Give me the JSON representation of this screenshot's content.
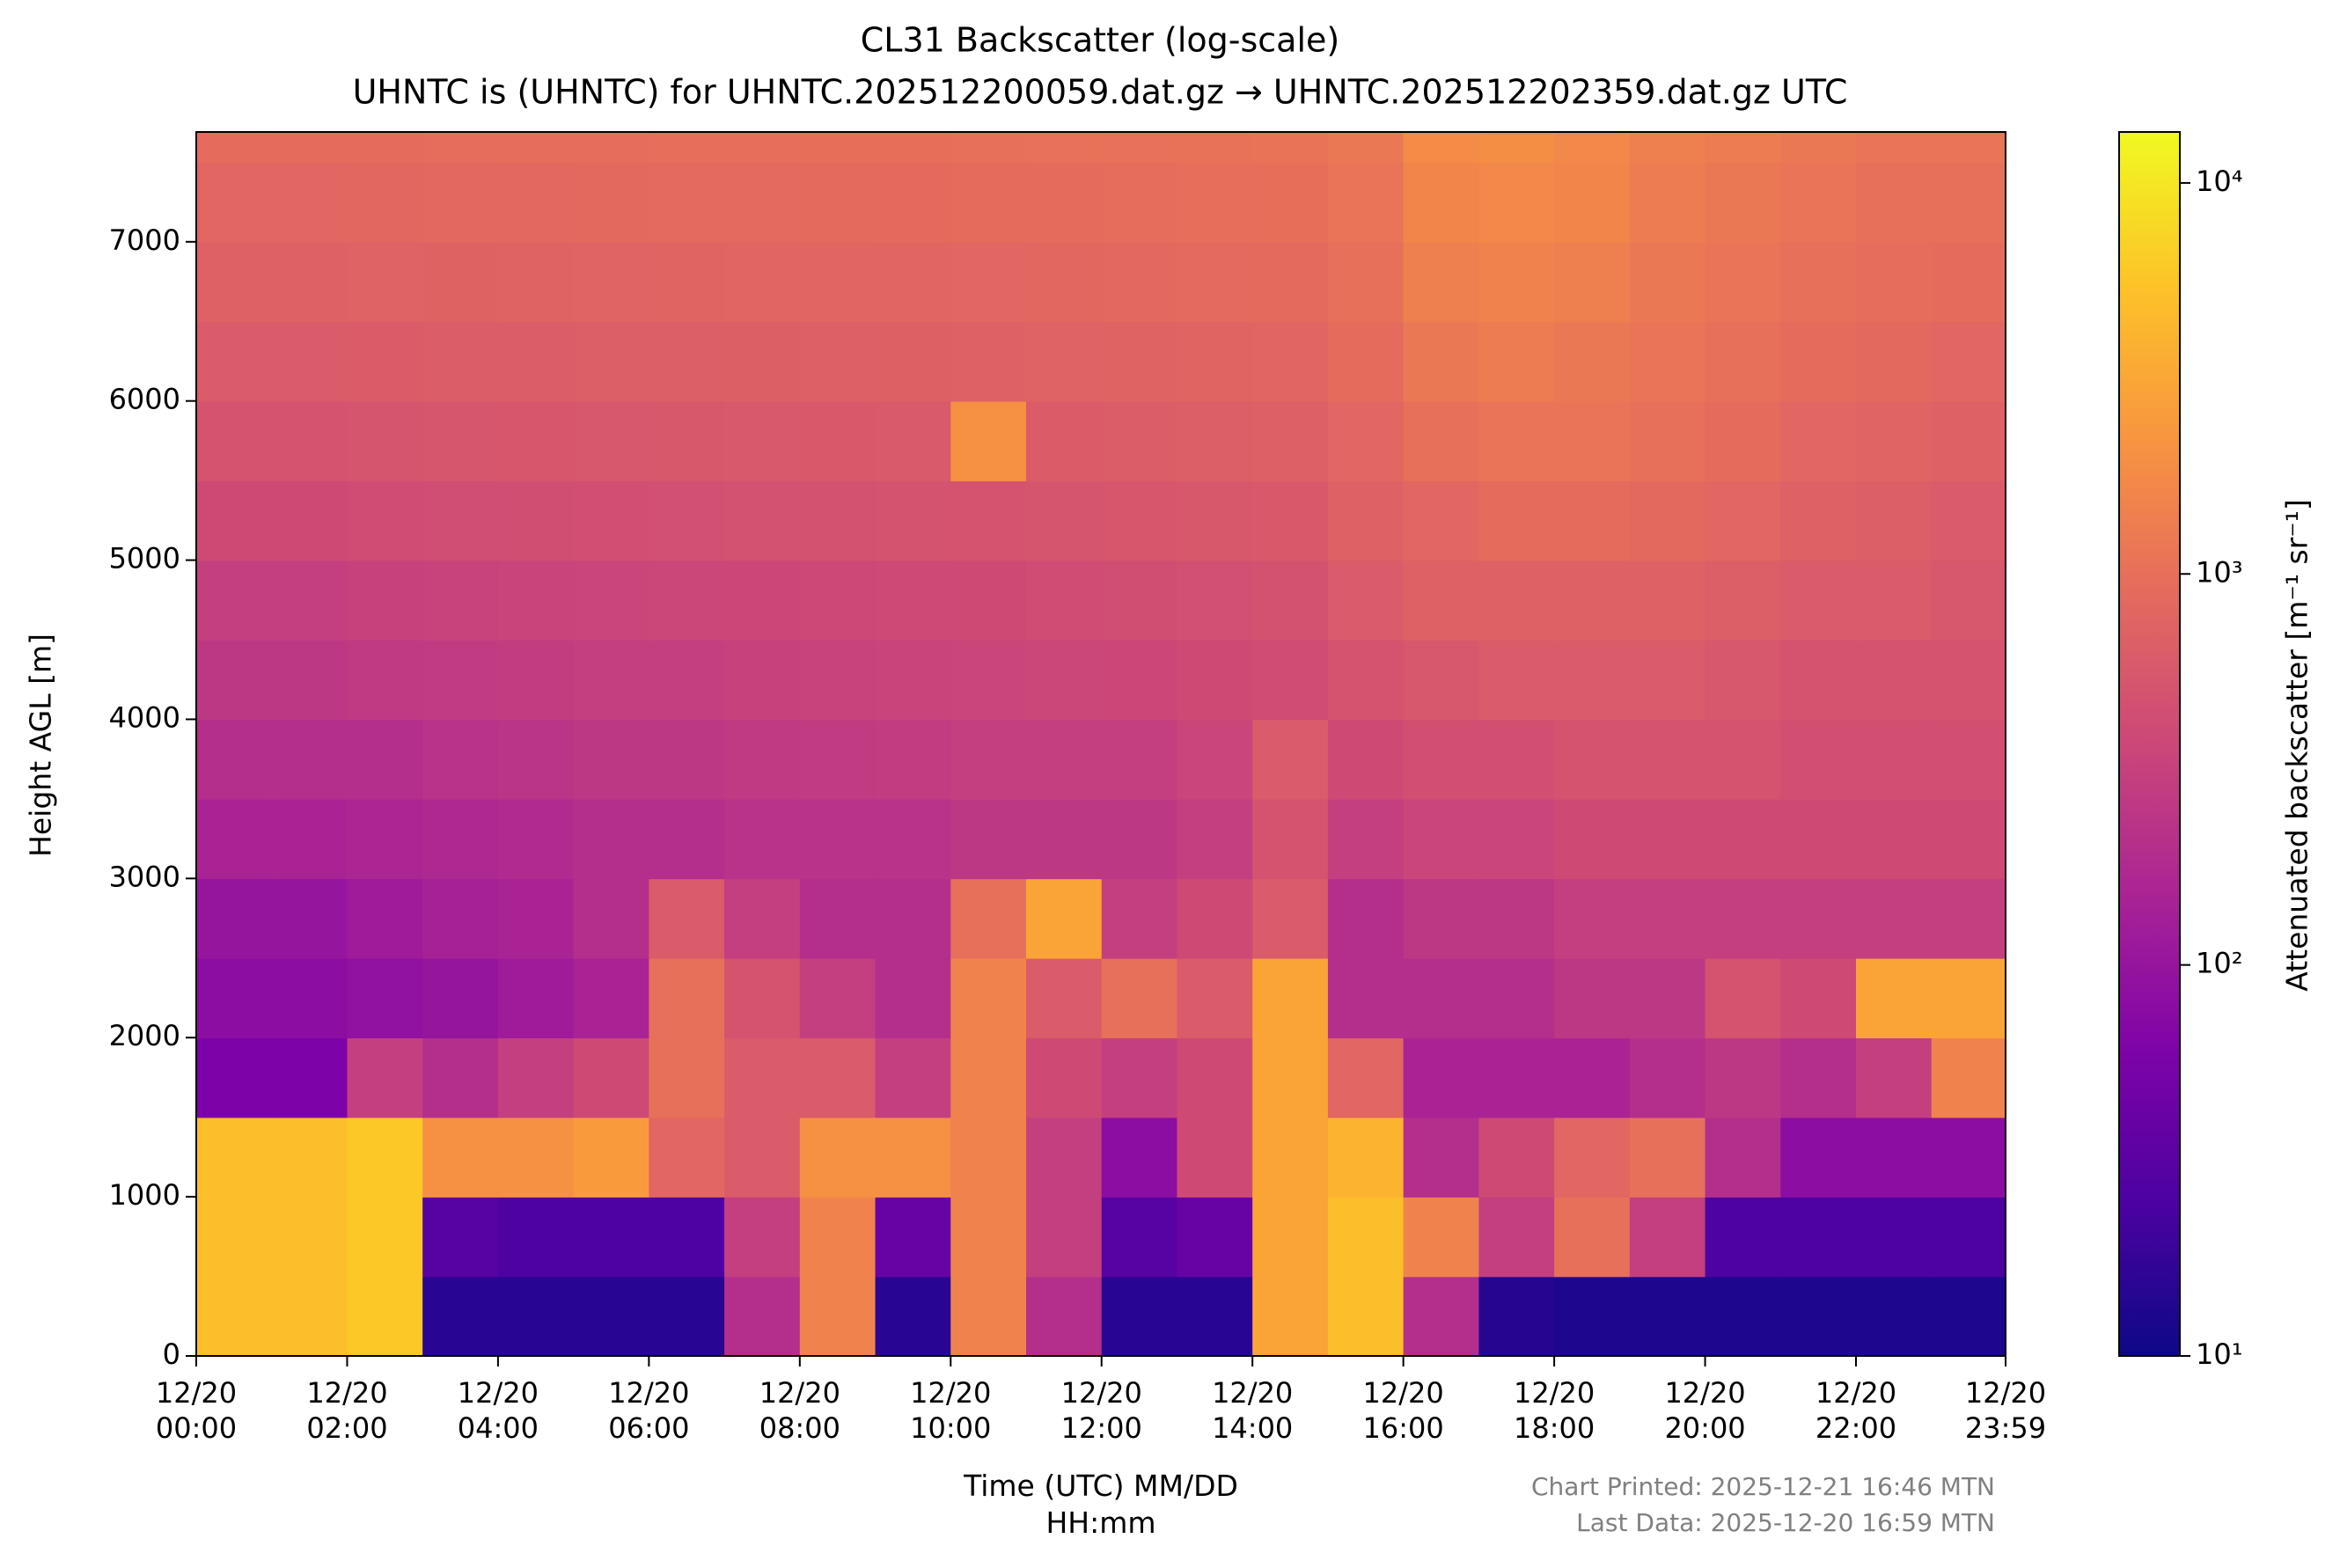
{
  "chart_data": {
    "type": "heatmap",
    "title": "CL31 Backscatter (log-scale)",
    "subtitle": "UHNTC is (UHNTC) for UHNTC.202512200059.dat.gz → UHNTC.202512202359.dat.gz UTC",
    "x_label": "Time (UTC) MM/DD\nHH:mm",
    "y_label": "Height AGL [m]",
    "colorbar_label": "Attenuated backscatter [m⁻¹ sr⁻¹]",
    "footer": [
      "Chart Printed: 2025-12-21 16:46 MTN",
      "Last Data: 2025-12-20 16:59 MTN"
    ],
    "colormap": "plasma",
    "color_scale": "log",
    "xlim": [
      0,
      23.983
    ],
    "xticks": [
      {
        "value": 0,
        "label": "12/20\n00:00"
      },
      {
        "value": 2,
        "label": "12/20\n02:00"
      },
      {
        "value": 4,
        "label": "12/20\n04:00"
      },
      {
        "value": 6,
        "label": "12/20\n06:00"
      },
      {
        "value": 8,
        "label": "12/20\n08:00"
      },
      {
        "value": 10,
        "label": "12/20\n10:00"
      },
      {
        "value": 12,
        "label": "12/20\n12:00"
      },
      {
        "value": 14,
        "label": "12/20\n14:00"
      },
      {
        "value": 16,
        "label": "12/20\n16:00"
      },
      {
        "value": 18,
        "label": "12/20\n18:00"
      },
      {
        "value": 20,
        "label": "12/20\n20:00"
      },
      {
        "value": 22,
        "label": "12/20\n22:00"
      },
      {
        "value": 23.983,
        "label": "12/20\n23:59"
      }
    ],
    "ylim": [
      0,
      7690
    ],
    "yticks": [
      0,
      1000,
      2000,
      3000,
      4000,
      5000,
      6000,
      7000
    ],
    "clim": [
      10,
      13500
    ],
    "cticks": [
      {
        "value": 10,
        "label": "10¹"
      },
      {
        "value": 100,
        "label": "10²"
      },
      {
        "value": 1000,
        "label": "10³"
      },
      {
        "value": 10000,
        "label": "10⁴"
      }
    ],
    "x_bins": [
      0,
      1,
      2,
      3,
      4,
      5,
      6,
      7,
      8,
      9,
      10,
      11,
      12,
      13,
      14,
      15,
      16,
      17,
      18,
      19,
      20,
      21,
      22,
      23,
      24
    ],
    "y_bins": [
      0,
      500,
      1000,
      1500,
      2000,
      2500,
      3000,
      3500,
      4000,
      4500,
      5000,
      5500,
      6000,
      6500,
      7000,
      7500,
      8000
    ],
    "z": [
      [
        5000,
        5000,
        6000,
        15,
        15,
        15,
        15,
        200,
        1500,
        15,
        1500,
        200,
        15,
        15,
        3000,
        5000,
        200,
        14,
        13,
        13,
        13,
        13,
        13,
        13
      ],
      [
        5000,
        5000,
        6000,
        30,
        25,
        25,
        25,
        300,
        1500,
        40,
        1500,
        300,
        30,
        40,
        3000,
        5000,
        1500,
        300,
        1000,
        300,
        25,
        25,
        25,
        25
      ],
      [
        5000,
        5000,
        6000,
        2000,
        2000,
        2500,
        800,
        600,
        2000,
        2000,
        1500,
        300,
        80,
        400,
        3000,
        4000,
        200,
        400,
        800,
        1000,
        200,
        80,
        80,
        80
      ],
      [
        60,
        60,
        300,
        200,
        300,
        400,
        1000,
        600,
        600,
        300,
        1500,
        400,
        300,
        400,
        3000,
        800,
        150,
        150,
        150,
        200,
        250,
        200,
        300,
        1500
      ],
      [
        80,
        80,
        90,
        100,
        120,
        150,
        1000,
        500,
        300,
        200,
        1500,
        600,
        1000,
        600,
        3000,
        200,
        200,
        200,
        250,
        250,
        500,
        400,
        3000,
        3000
      ],
      [
        100,
        100,
        120,
        140,
        150,
        200,
        600,
        300,
        200,
        200,
        1000,
        3000,
        300,
        400,
        600,
        200,
        250,
        250,
        300,
        300,
        300,
        300,
        300,
        300
      ],
      [
        150,
        150,
        160,
        170,
        180,
        200,
        200,
        220,
        220,
        220,
        250,
        250,
        250,
        300,
        500,
        300,
        350,
        350,
        400,
        400,
        400,
        400,
        400,
        400
      ],
      [
        200,
        200,
        200,
        220,
        230,
        250,
        250,
        260,
        270,
        280,
        300,
        300,
        300,
        350,
        600,
        400,
        450,
        450,
        500,
        500,
        500,
        450,
        450,
        450
      ],
      [
        250,
        250,
        260,
        270,
        280,
        300,
        300,
        320,
        330,
        340,
        350,
        360,
        370,
        400,
        420,
        500,
        550,
        600,
        600,
        600,
        550,
        500,
        500,
        500
      ],
      [
        300,
        300,
        320,
        330,
        340,
        350,
        360,
        370,
        380,
        390,
        400,
        420,
        440,
        460,
        480,
        600,
        700,
        700,
        700,
        700,
        650,
        600,
        600,
        550
      ],
      [
        400,
        400,
        420,
        430,
        440,
        450,
        460,
        470,
        480,
        490,
        500,
        520,
        540,
        560,
        580,
        700,
        800,
        900,
        900,
        850,
        800,
        700,
        650,
        600
      ],
      [
        500,
        500,
        520,
        530,
        540,
        550,
        560,
        570,
        580,
        590,
        2000,
        620,
        640,
        660,
        680,
        800,
        1000,
        1100,
        1100,
        1000,
        900,
        800,
        750,
        700
      ],
      [
        600,
        600,
        620,
        630,
        640,
        650,
        660,
        670,
        680,
        690,
        700,
        720,
        740,
        760,
        780,
        900,
        1200,
        1300,
        1200,
        1100,
        1000,
        900,
        850,
        800
      ],
      [
        700,
        700,
        720,
        730,
        740,
        750,
        760,
        770,
        780,
        790,
        800,
        820,
        840,
        860,
        880,
        1000,
        1400,
        1500,
        1400,
        1200,
        1100,
        1000,
        950,
        900
      ],
      [
        800,
        800,
        820,
        830,
        840,
        850,
        860,
        870,
        880,
        890,
        900,
        920,
        940,
        960,
        980,
        1100,
        1600,
        1700,
        1600,
        1300,
        1200,
        1100,
        1000,
        1000
      ],
      [
        900,
        900,
        920,
        930,
        940,
        950,
        960,
        970,
        980,
        990,
        1000,
        1020,
        1040,
        1060,
        1080,
        1200,
        1800,
        1900,
        1700,
        1400,
        1300,
        1200,
        1100,
        1100
      ]
    ]
  }
}
